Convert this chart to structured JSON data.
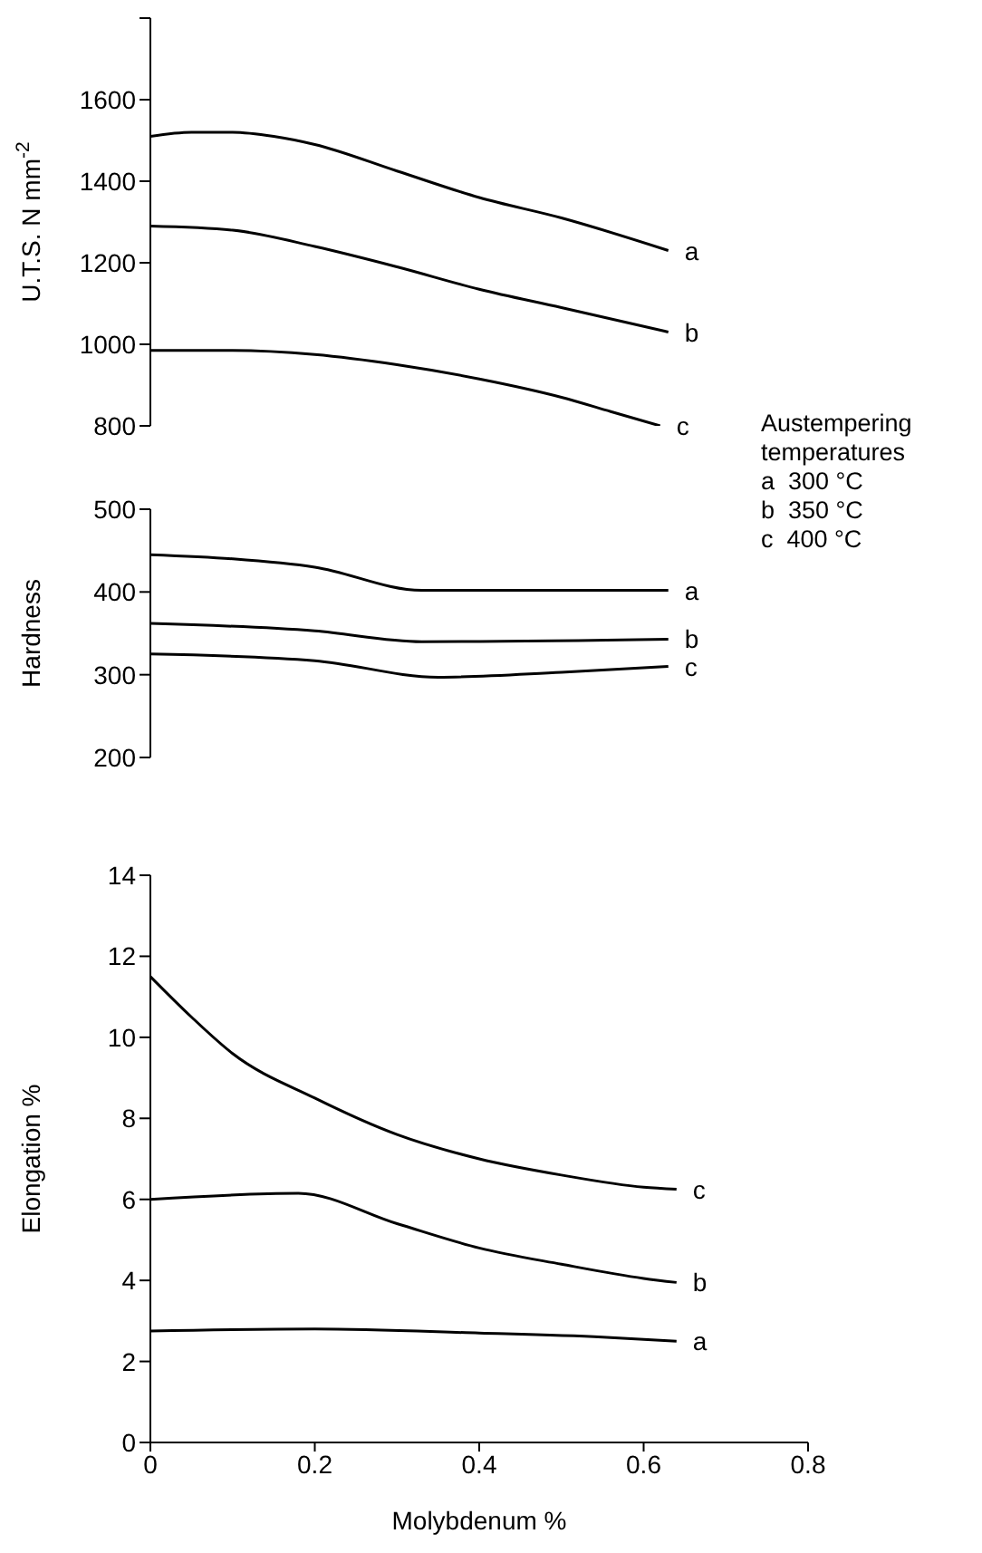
{
  "chart_data": [
    {
      "type": "line",
      "ylabel": "U.T.S. N mm$^{-2}$",
      "xlim": [
        0,
        0.8
      ],
      "ylim": [
        800,
        1800
      ],
      "yticks": [
        800,
        1000,
        1200,
        1400,
        1600,
        {
          "value": 1800,
          "label": null
        }
      ],
      "tick_labels": "y",
      "marker": "none",
      "line_style": "solid",
      "annotations": [
        "Austempering temperatures",
        "a  300 °C",
        "b  350 °C",
        "c  400 °C"
      ],
      "series": [
        {
          "name": "a",
          "color": "#000000",
          "x": [
            0,
            0.05,
            0.1,
            0.15,
            0.2,
            0.3,
            0.4,
            0.5,
            0.63
          ],
          "values": [
            1510,
            1520,
            1520,
            1510,
            1490,
            1425,
            1360,
            1310,
            1230
          ]
        },
        {
          "name": "b",
          "color": "#000000",
          "x": [
            0,
            0.1,
            0.2,
            0.3,
            0.4,
            0.5,
            0.63
          ],
          "values": [
            1290,
            1280,
            1240,
            1190,
            1135,
            1090,
            1030
          ]
        },
        {
          "name": "c",
          "color": "#000000",
          "x": [
            0,
            0.1,
            0.2,
            0.3,
            0.4,
            0.5,
            0.56,
            0.62
          ],
          "values": [
            985,
            985,
            975,
            950,
            915,
            870,
            835,
            800
          ]
        }
      ]
    },
    {
      "type": "line",
      "ylabel": "Hardness",
      "xlim": [
        0,
        0.8
      ],
      "ylim": [
        200,
        500
      ],
      "yticks": [
        200,
        300,
        400,
        500
      ],
      "tick_labels": "y",
      "marker": "none",
      "line_style": "solid",
      "series": [
        {
          "name": "a",
          "color": "#000000",
          "x": [
            0,
            0.1,
            0.2,
            0.33,
            0.45,
            0.63
          ],
          "values": [
            445,
            440,
            430,
            402,
            402,
            402
          ]
        },
        {
          "name": "b",
          "color": "#000000",
          "x": [
            0,
            0.2,
            0.33,
            0.63
          ],
          "values": [
            362,
            353,
            340,
            343
          ]
        },
        {
          "name": "c",
          "color": "#000000",
          "x": [
            0,
            0.2,
            0.35,
            0.5,
            0.63
          ],
          "values": [
            325,
            317,
            297,
            303,
            310
          ]
        }
      ]
    },
    {
      "type": "line",
      "xlabel": "Molybdenum %",
      "ylabel": "Elongation %",
      "xlim": [
        0,
        0.8
      ],
      "xticks": [
        0,
        0.2,
        0.4,
        0.6,
        0.8
      ],
      "ylim": [
        0,
        14
      ],
      "yticks": [
        0,
        2,
        4,
        6,
        8,
        10,
        12,
        14
      ],
      "marker": "none",
      "line_style": "solid",
      "series": [
        {
          "name": "c",
          "color": "#000000",
          "x": [
            0,
            0.05,
            0.1,
            0.2,
            0.3,
            0.4,
            0.5,
            0.6,
            0.64
          ],
          "values": [
            11.5,
            10.5,
            9.6,
            8.5,
            7.6,
            7.0,
            6.6,
            6.3,
            6.25
          ]
        },
        {
          "name": "b",
          "color": "#000000",
          "x": [
            0,
            0.18,
            0.3,
            0.4,
            0.5,
            0.6,
            0.64
          ],
          "values": [
            6.0,
            6.15,
            5.4,
            4.8,
            4.4,
            4.05,
            3.95
          ]
        },
        {
          "name": "a",
          "color": "#000000",
          "x": [
            0,
            0.2,
            0.4,
            0.55,
            0.64
          ],
          "values": [
            2.75,
            2.8,
            2.7,
            2.6,
            2.5
          ]
        }
      ]
    }
  ]
}
